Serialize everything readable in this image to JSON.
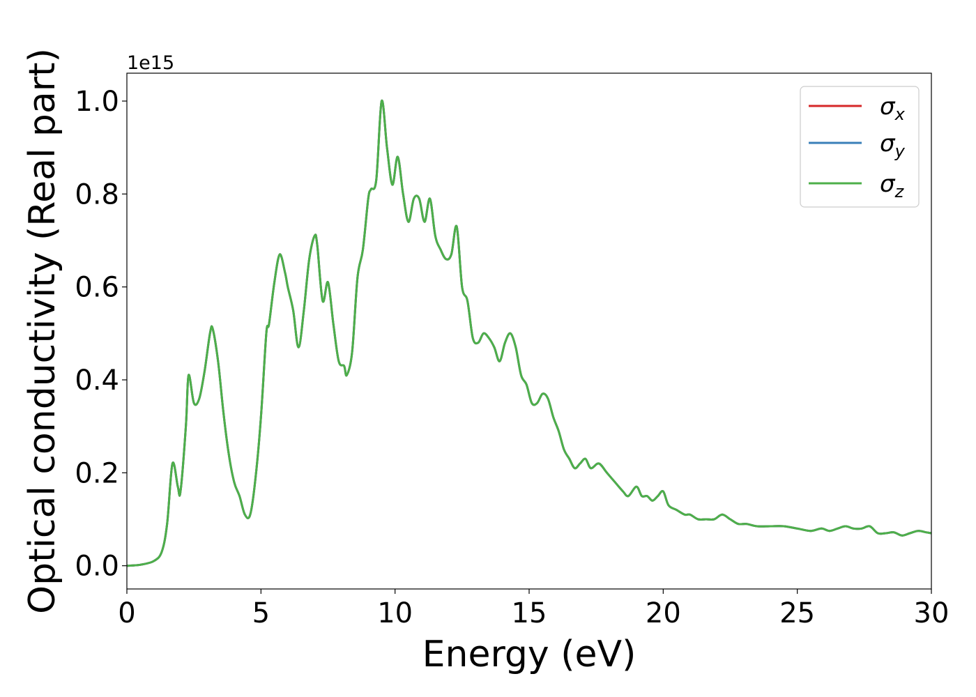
{
  "chart_data": {
    "type": "line",
    "xlabel": "Energy (eV)",
    "ylabel": "Optical conductivity (Real part)",
    "y_offset_label": "1e15",
    "xlim": [
      0,
      30
    ],
    "ylim": [
      -0.05,
      1.06
    ],
    "x_ticks": [
      0,
      5,
      10,
      15,
      20,
      25,
      30
    ],
    "x_tick_labels": [
      "0",
      "5",
      "10",
      "15",
      "20",
      "25",
      "30"
    ],
    "y_ticks": [
      0.0,
      0.2,
      0.4,
      0.6,
      0.8,
      1.0
    ],
    "y_tick_labels": [
      "0.0",
      "0.2",
      "0.4",
      "0.6",
      "0.8",
      "1.0"
    ],
    "grid": false,
    "legend_position": "top-right",
    "series": [
      {
        "name": "σx",
        "label_base": "σ",
        "label_sub": "x",
        "color": "#d62728"
      },
      {
        "name": "σy",
        "label_base": "σ",
        "label_sub": "y",
        "color": "#3a7fb8"
      },
      {
        "name": "σz",
        "label_base": "σ",
        "label_sub": "z",
        "color": "#4daf4a"
      }
    ],
    "shared_curve": {
      "x": [
        0,
        0.5,
        1.0,
        1.3,
        1.5,
        1.7,
        1.9,
        2.0,
        2.2,
        2.3,
        2.5,
        2.7,
        2.9,
        3.1,
        3.2,
        3.4,
        3.6,
        3.8,
        4.0,
        4.2,
        4.4,
        4.6,
        4.8,
        5.0,
        5.2,
        5.3,
        5.5,
        5.7,
        5.9,
        6.0,
        6.2,
        6.4,
        6.6,
        6.8,
        7.0,
        7.1,
        7.3,
        7.5,
        7.7,
        7.9,
        8.1,
        8.2,
        8.4,
        8.6,
        8.8,
        9.0,
        9.1,
        9.3,
        9.5,
        9.7,
        9.9,
        10.1,
        10.3,
        10.5,
        10.7,
        10.9,
        11.1,
        11.3,
        11.5,
        11.7,
        11.9,
        12.1,
        12.3,
        12.5,
        12.7,
        12.9,
        13.1,
        13.3,
        13.5,
        13.7,
        13.9,
        14.1,
        14.3,
        14.5,
        14.7,
        14.9,
        15.1,
        15.3,
        15.5,
        15.7,
        15.9,
        16.1,
        16.3,
        16.5,
        16.7,
        16.9,
        17.1,
        17.3,
        17.6,
        17.9,
        18.2,
        18.5,
        18.7,
        19.0,
        19.2,
        19.4,
        19.6,
        19.8,
        20.0,
        20.2,
        20.5,
        20.8,
        21.0,
        21.3,
        21.6,
        21.9,
        22.2,
        22.5,
        22.8,
        23.1,
        23.5,
        24.0,
        24.5,
        25.0,
        25.5,
        25.9,
        26.2,
        26.5,
        26.8,
        27.1,
        27.4,
        27.7,
        28.0,
        28.3,
        28.6,
        28.9,
        29.2,
        29.5,
        29.8,
        30.0
      ],
      "y": [
        0.0,
        0.002,
        0.01,
        0.03,
        0.09,
        0.22,
        0.17,
        0.16,
        0.3,
        0.41,
        0.35,
        0.36,
        0.42,
        0.5,
        0.51,
        0.44,
        0.33,
        0.24,
        0.18,
        0.15,
        0.11,
        0.11,
        0.19,
        0.32,
        0.5,
        0.52,
        0.61,
        0.67,
        0.63,
        0.6,
        0.55,
        0.47,
        0.55,
        0.66,
        0.71,
        0.69,
        0.57,
        0.61,
        0.52,
        0.44,
        0.43,
        0.41,
        0.46,
        0.62,
        0.68,
        0.79,
        0.81,
        0.83,
        1.0,
        0.9,
        0.82,
        0.88,
        0.8,
        0.74,
        0.79,
        0.79,
        0.74,
        0.79,
        0.71,
        0.68,
        0.66,
        0.67,
        0.73,
        0.6,
        0.57,
        0.49,
        0.48,
        0.5,
        0.49,
        0.47,
        0.44,
        0.48,
        0.5,
        0.47,
        0.41,
        0.39,
        0.35,
        0.35,
        0.37,
        0.36,
        0.32,
        0.29,
        0.25,
        0.23,
        0.21,
        0.22,
        0.23,
        0.21,
        0.22,
        0.2,
        0.18,
        0.16,
        0.15,
        0.17,
        0.15,
        0.15,
        0.14,
        0.15,
        0.16,
        0.13,
        0.12,
        0.11,
        0.11,
        0.1,
        0.1,
        0.1,
        0.11,
        0.1,
        0.09,
        0.09,
        0.085,
        0.085,
        0.085,
        0.08,
        0.075,
        0.08,
        0.075,
        0.08,
        0.085,
        0.08,
        0.08,
        0.085,
        0.07,
        0.07,
        0.072,
        0.065,
        0.07,
        0.075,
        0.072,
        0.07
      ]
    }
  }
}
